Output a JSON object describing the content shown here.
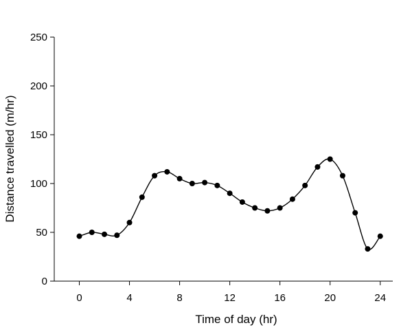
{
  "chart_data": {
    "type": "line",
    "title": "",
    "xlabel": "Time of day (hr)",
    "ylabel": "Distance travelled (m/hr)",
    "xlim": [
      -2,
      25
    ],
    "ylim": [
      0,
      250
    ],
    "xticks": [
      0,
      4,
      8,
      12,
      16,
      20,
      24
    ],
    "yticks": [
      0,
      50,
      100,
      150,
      200,
      250
    ],
    "xtick_labels": [
      "0",
      "4",
      "8",
      "12",
      "16",
      "20",
      "24"
    ],
    "ytick_labels": [
      "0",
      "50",
      "100",
      "150",
      "200",
      "250"
    ],
    "grid": false,
    "legend": "none",
    "line_color": "#000000",
    "marker": "filled-circle",
    "series": [
      {
        "x": [
          0,
          1,
          2,
          3,
          4,
          5,
          6,
          7,
          8,
          9,
          10,
          11,
          12,
          13,
          14,
          15,
          16,
          17,
          18,
          19,
          20,
          21,
          22,
          23,
          24
        ],
        "values": [
          46,
          50,
          48,
          47,
          60,
          86,
          108,
          112,
          105,
          100,
          101,
          98,
          90,
          81,
          75,
          72,
          75,
          84,
          98,
          117,
          125,
          108,
          70,
          33,
          46
        ]
      }
    ]
  }
}
